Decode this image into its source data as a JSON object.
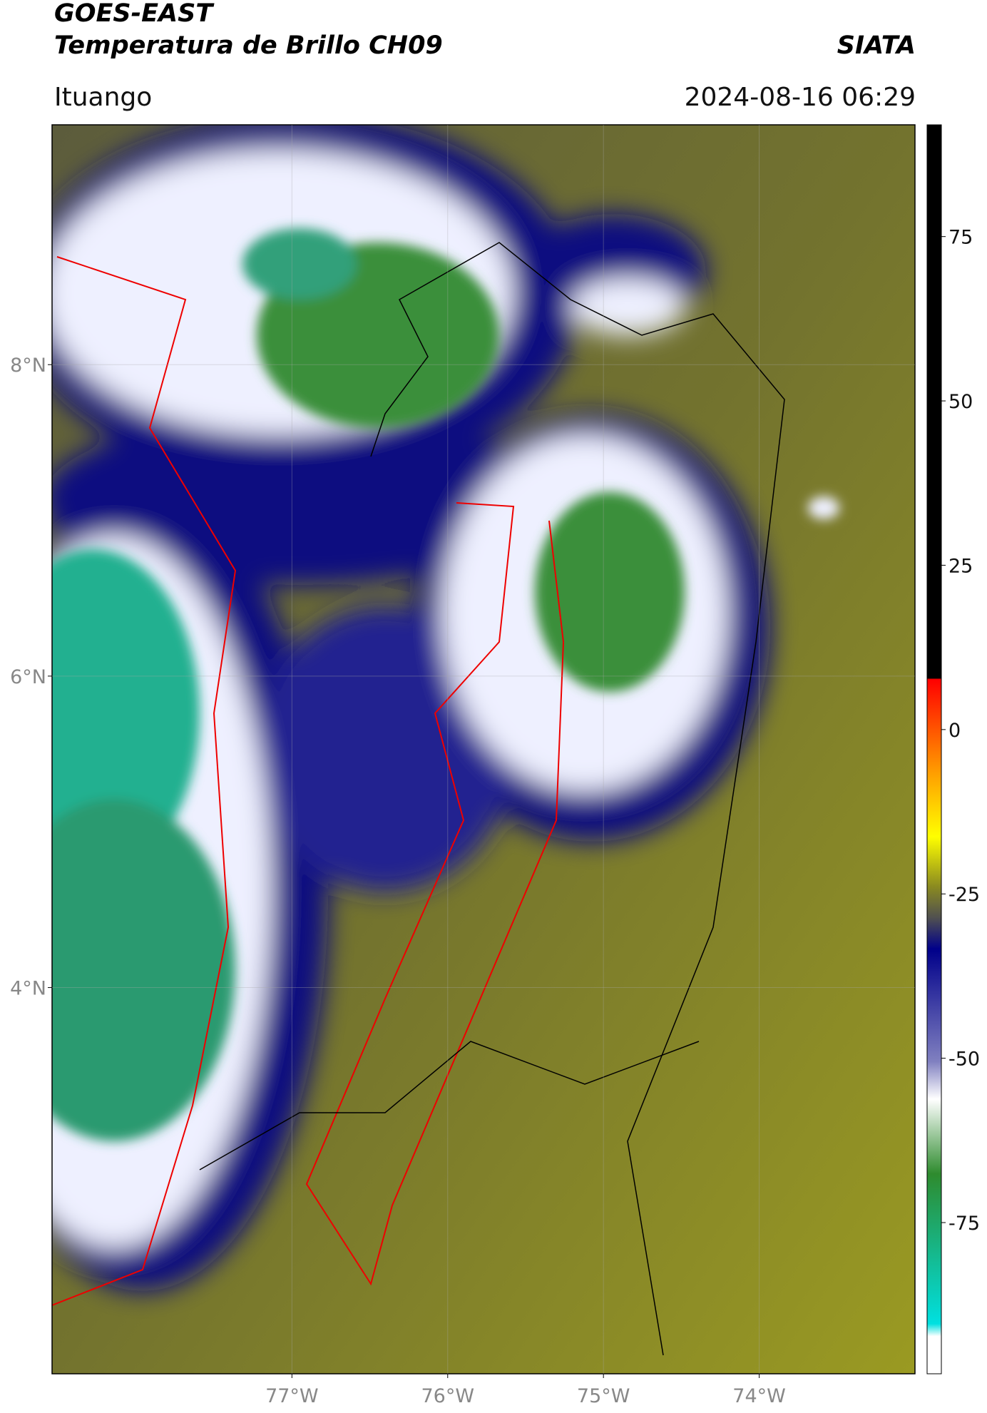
{
  "header": {
    "title": "GOES-EAST",
    "subtitle": "Temperatura de Brillo CH09",
    "brand": "SIATA",
    "location": "Ituango",
    "datetime": "2024-08-16 06:29"
  },
  "map": {
    "lonlim": [
      -78.54,
      -73.0
    ],
    "latlim": [
      1.52,
      9.54
    ],
    "lat_ticks": [
      {
        "value": 8,
        "label": "8°N"
      },
      {
        "value": 6,
        "label": "6°N"
      },
      {
        "value": 4,
        "label": "4°N"
      }
    ],
    "lon_ticks": [
      {
        "value": -77,
        "label": "77°W"
      },
      {
        "value": -76,
        "label": "76°W"
      },
      {
        "value": -75,
        "label": "75°W"
      },
      {
        "value": -74,
        "label": "74°W"
      }
    ],
    "grid": true
  },
  "colorbar": {
    "range": [
      -98,
      92
    ],
    "ticks": [
      75,
      50,
      25,
      0,
      -25,
      -50,
      -75
    ]
  }
}
